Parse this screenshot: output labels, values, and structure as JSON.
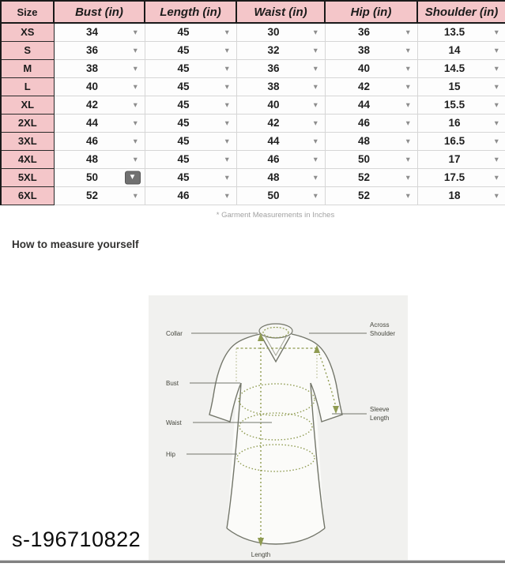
{
  "size_chart": {
    "columns": [
      {
        "key": "size",
        "label": "Size"
      },
      {
        "key": "bust",
        "label": "Bust (in)"
      },
      {
        "key": "length",
        "label": "Length (in)"
      },
      {
        "key": "waist",
        "label": "Waist (in)"
      },
      {
        "key": "hip",
        "label": "Hip (in)"
      },
      {
        "key": "shoulder",
        "label": "Shoulder (in)"
      }
    ],
    "rows": [
      {
        "size": "XS",
        "bust": "34",
        "length": "45",
        "waist": "30",
        "hip": "36",
        "shoulder": "13.5"
      },
      {
        "size": "S",
        "bust": "36",
        "length": "45",
        "waist": "32",
        "hip": "38",
        "shoulder": "14"
      },
      {
        "size": "M",
        "bust": "38",
        "length": "45",
        "waist": "36",
        "hip": "40",
        "shoulder": "14.5"
      },
      {
        "size": "L",
        "bust": "40",
        "length": "45",
        "waist": "38",
        "hip": "42",
        "shoulder": "15"
      },
      {
        "size": "XL",
        "bust": "42",
        "length": "45",
        "waist": "40",
        "hip": "44",
        "shoulder": "15.5"
      },
      {
        "size": "2XL",
        "bust": "44",
        "length": "45",
        "waist": "42",
        "hip": "46",
        "shoulder": "16"
      },
      {
        "size": "3XL",
        "bust": "46",
        "length": "45",
        "waist": "44",
        "hip": "48",
        "shoulder": "16.5"
      },
      {
        "size": "4XL",
        "bust": "48",
        "length": "45",
        "waist": "46",
        "hip": "50",
        "shoulder": "17"
      },
      {
        "size": "5XL",
        "bust": "50",
        "length": "45",
        "waist": "48",
        "hip": "52",
        "shoulder": "17.5"
      },
      {
        "size": "6XL",
        "bust": "52",
        "length": "46",
        "waist": "50",
        "hip": "52",
        "shoulder": "18"
      }
    ],
    "active_dropdown": {
      "row": "5XL",
      "column": "bust"
    },
    "footnote": "* Garment Measurements in Inches"
  },
  "section": {
    "heading": "How to measure yourself"
  },
  "diagram": {
    "labels": {
      "collar": "Collar",
      "across_shoulder": [
        "Across",
        "Shoulder"
      ],
      "bust": "Bust",
      "waist": "Waist",
      "sleeve_length": [
        "Sleeve",
        "Length"
      ],
      "hip": "Hip",
      "length": "Length"
    }
  },
  "icons": {
    "dropdown": "▾"
  },
  "watermark": "s-196710822",
  "colors": {
    "pink": "#f4c6c9",
    "table_border_dark": "#1a1a1a",
    "cell_border": "#d6d6d6",
    "measure_olive": "#8f9b51",
    "outline_gray": "#73766a",
    "diagram_bg": "#f1f1ef"
  }
}
